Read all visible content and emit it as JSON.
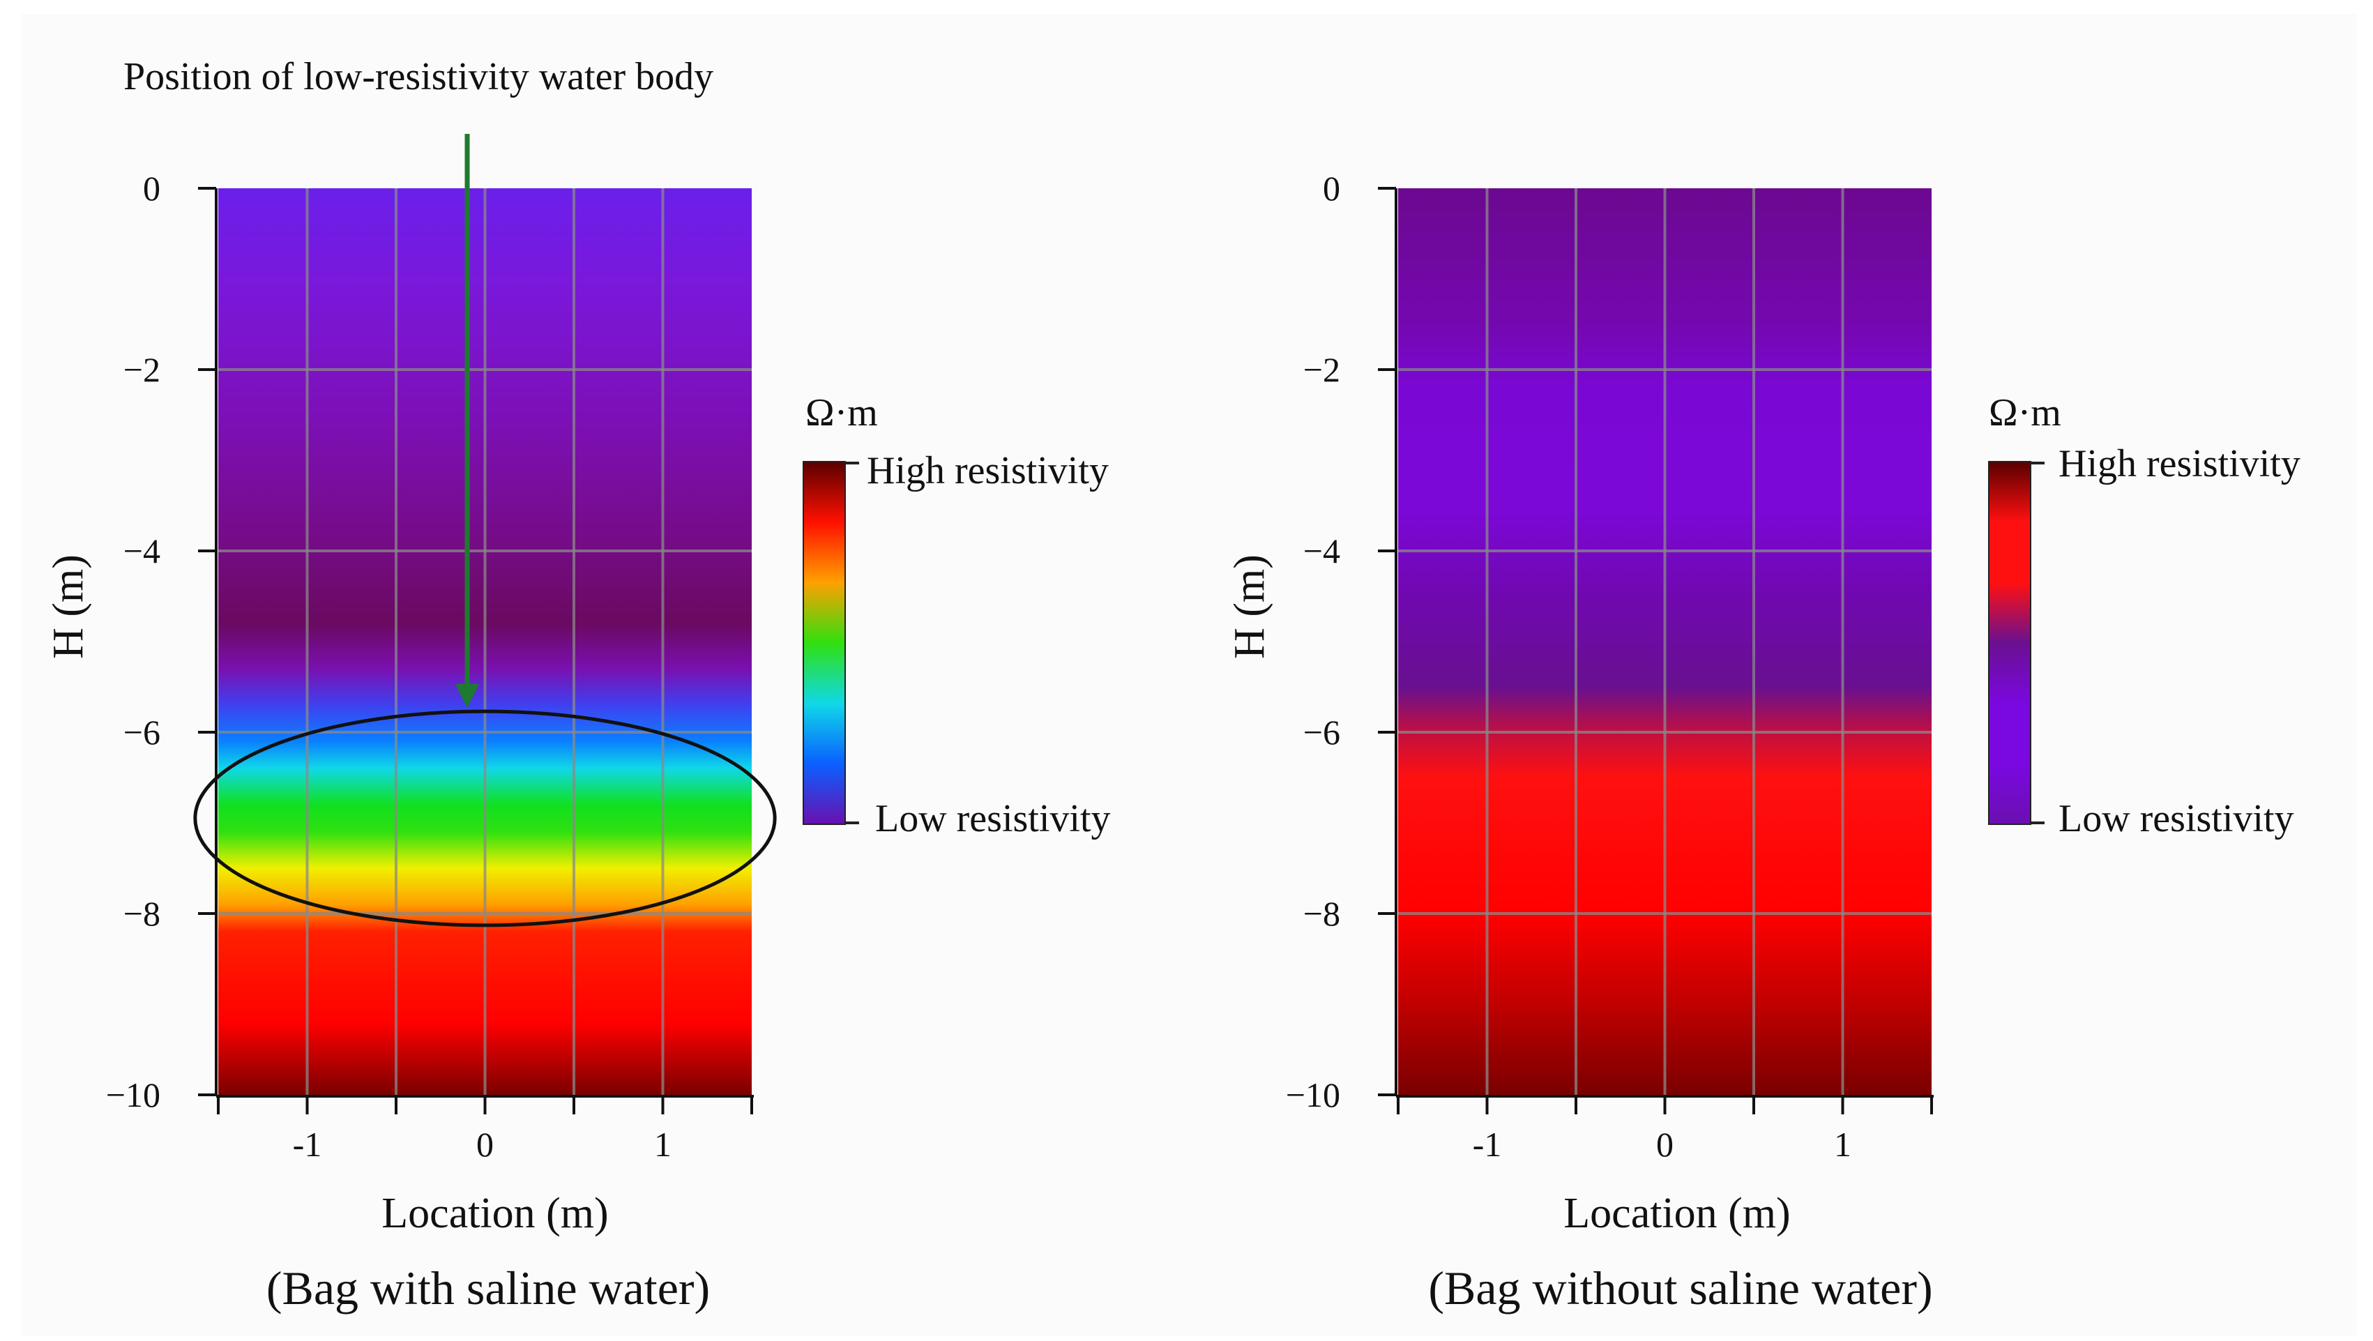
{
  "annotation": "Position of low-resistivity water body",
  "chart_data": [
    {
      "type": "heatmap",
      "title": "(Bag with saline water)",
      "xlabel": "Location (m)",
      "ylabel": "H (m)",
      "xlim": [
        -1.5,
        1.5
      ],
      "ylim": [
        -10,
        0
      ],
      "x_ticks": [
        -1.5,
        -1,
        -0.5,
        0,
        0.5,
        1,
        1.5
      ],
      "x_tick_labels": [
        "-1",
        "0",
        "1"
      ],
      "y_ticks": [
        0,
        -2,
        -4,
        -6,
        -8,
        -10
      ],
      "y_tick_labels": [
        "0",
        "−2",
        "−4",
        "−6",
        "−8",
        "−10"
      ],
      "grid": true,
      "depth_profile": [
        {
          "h": 0,
          "color": "#6a20ea"
        },
        {
          "h": -1,
          "color": "#7a18dc"
        },
        {
          "h": -2.5,
          "color": "#7c10b8"
        },
        {
          "h": -3.8,
          "color": "#760c8a"
        },
        {
          "h": -4.8,
          "color": "#6a0a60"
        },
        {
          "h": -5.3,
          "color": "#7a10b0"
        },
        {
          "h": -5.7,
          "color": "#4040f0"
        },
        {
          "h": -6.1,
          "color": "#0a80ff"
        },
        {
          "h": -6.4,
          "color": "#10d8e8"
        },
        {
          "h": -6.8,
          "color": "#10e020"
        },
        {
          "h": -7.1,
          "color": "#30e010"
        },
        {
          "h": -7.5,
          "color": "#f0f000"
        },
        {
          "h": -7.9,
          "color": "#ffa000"
        },
        {
          "h": -8.2,
          "color": "#ff2000"
        },
        {
          "h": -9.2,
          "color": "#ff0000"
        },
        {
          "h": -10,
          "color": "#7a0000"
        }
      ],
      "highlight_ellipse": {
        "center_x": 0,
        "center_h": -6.95,
        "radius_x": 1.63,
        "radius_h": 1.18
      },
      "arrow": {
        "x": -0.1,
        "from_h": 0.6,
        "to_h": -5.7,
        "color": "#1e7a2e"
      },
      "colorbar": {
        "unit": "Ω·m",
        "high_label": "High resistivity",
        "low_label": "Low resistivity",
        "stops": [
          "#5a0000",
          "#ff1000",
          "#ffa000",
          "#30e010",
          "#10d8e8",
          "#0a60ff",
          "#6a10b0"
        ]
      }
    },
    {
      "type": "heatmap",
      "title": "(Bag without saline water)",
      "xlabel": "Location (m)",
      "ylabel": "H (m)",
      "xlim": [
        -1.5,
        1.5
      ],
      "ylim": [
        -10,
        0
      ],
      "x_ticks": [
        -1.5,
        -1,
        -0.5,
        0,
        0.5,
        1,
        1.5
      ],
      "x_tick_labels": [
        "-1",
        "0",
        "1"
      ],
      "y_ticks": [
        0,
        -2,
        -4,
        -6,
        -8,
        -10
      ],
      "y_tick_labels": [
        "0",
        "−2",
        "−4",
        "−6",
        "−8",
        "−10"
      ],
      "grid": true,
      "depth_profile": [
        {
          "h": 0,
          "color": "#6c0890"
        },
        {
          "h": -1.5,
          "color": "#7408b0"
        },
        {
          "h": -2.2,
          "color": "#7a08d4"
        },
        {
          "h": -3.5,
          "color": "#7c08d8"
        },
        {
          "h": -4.5,
          "color": "#7008b0"
        },
        {
          "h": -5.5,
          "color": "#681090"
        },
        {
          "h": -6,
          "color": "#c01040"
        },
        {
          "h": -6.5,
          "color": "#ff1010"
        },
        {
          "h": -8,
          "color": "#ff0000"
        },
        {
          "h": -9,
          "color": "#c00000"
        },
        {
          "h": -10,
          "color": "#7a0000"
        }
      ],
      "colorbar": {
        "unit": "Ω·m",
        "high_label": "High resistivity",
        "low_label": "Low resistivity",
        "stops": [
          "#5a0000",
          "#ff1010",
          "#ff1010",
          "#6a1090",
          "#7a08e0",
          "#7a08e0",
          "#6a10b0"
        ]
      }
    }
  ]
}
